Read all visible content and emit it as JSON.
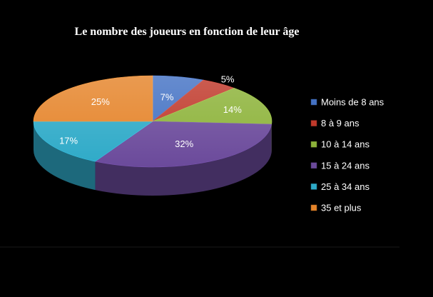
{
  "chart_data": {
    "type": "pie",
    "title": "Le nombre des joueurs en fonction de leur âge",
    "legend_position": "right",
    "slices": [
      {
        "label": "Moins de 8 ans",
        "value": 7,
        "display": "7%",
        "color": "#4472c4"
      },
      {
        "label": "8 à 9 ans",
        "value": 5,
        "display": "5%",
        "color": "#c0392b"
      },
      {
        "label": "10 à 14 ans",
        "value": 14,
        "display": "14%",
        "color": "#8db33a"
      },
      {
        "label": "15 à 24 ans",
        "value": 32,
        "display": "32%",
        "color": "#6b4a9b"
      },
      {
        "label": "25 à 34 ans",
        "value": 17,
        "display": "17%",
        "color": "#2eaac8"
      },
      {
        "label": "35 et plus",
        "value": 25,
        "display": "25%",
        "color": "#e5842a"
      }
    ]
  }
}
